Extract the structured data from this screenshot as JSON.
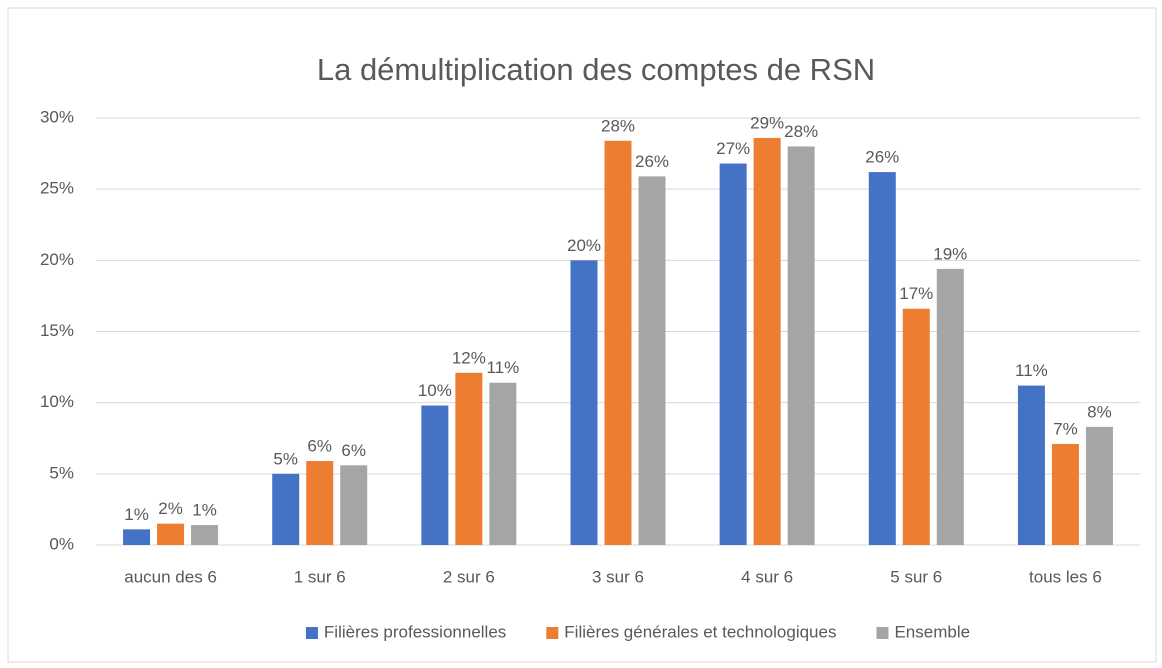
{
  "chart_data": {
    "type": "bar",
    "title": "La démultiplication des comptes de RSN",
    "categories": [
      "aucun des 6",
      "1 sur 6",
      "2 sur 6",
      "3 sur 6",
      "4 sur 6",
      "5 sur 6",
      "tous les 6"
    ],
    "series": [
      {
        "name": "Filières professionnelles",
        "color": "#4472c4",
        "values": [
          1.1,
          5.0,
          9.8,
          20.0,
          26.8,
          26.2,
          11.2
        ],
        "value_labels": [
          "1%",
          "5%",
          "10%",
          "20%",
          "27%",
          "26%",
          "11%"
        ]
      },
      {
        "name": "Filières générales et technologiques",
        "color": "#ed7d31",
        "values": [
          1.5,
          5.9,
          12.1,
          28.4,
          28.6,
          16.6,
          7.1
        ],
        "value_labels": [
          "2%",
          "6%",
          "12%",
          "28%",
          "29%",
          "17%",
          "7%"
        ]
      },
      {
        "name": "Ensemble",
        "color": "#a5a5a5",
        "values": [
          1.4,
          5.6,
          11.4,
          25.9,
          28.0,
          19.4,
          8.3
        ],
        "value_labels": [
          "1%",
          "6%",
          "11%",
          "26%",
          "28%",
          "19%",
          "8%"
        ]
      }
    ],
    "ylim": [
      0,
      30
    ],
    "yticks": [
      {
        "value": 0,
        "label": "0%"
      },
      {
        "value": 5,
        "label": "5%"
      },
      {
        "value": 10,
        "label": "10%"
      },
      {
        "value": 15,
        "label": "15%"
      },
      {
        "value": 20,
        "label": "20%"
      },
      {
        "value": 25,
        "label": "25%"
      },
      {
        "value": 30,
        "label": "30%"
      }
    ],
    "grid": true,
    "legend": "bottom"
  }
}
